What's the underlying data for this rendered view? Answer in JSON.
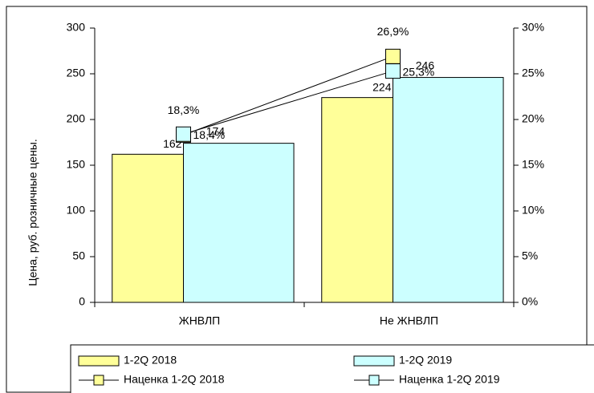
{
  "chart_data": {
    "type": "bar",
    "categories": [
      "ЖНВЛП",
      "Не ЖНВЛП"
    ],
    "y_label": "Цена, руб. розничные цены.",
    "series": [
      {
        "name": "1-2Q 2018",
        "color": "#ffff99",
        "values": [
          162,
          224
        ]
      },
      {
        "name": "1-2Q 2019",
        "color": "#ccffff",
        "values": [
          174,
          246
        ]
      },
      {
        "name": "Наценка 1-2Q 2018",
        "color": "#ffff99",
        "axis": "y2",
        "values": [
          18.3,
          26.9
        ],
        "value_labels": [
          "18,3%",
          "26,9%"
        ]
      },
      {
        "name": "Наценка 1-2Q 2019",
        "color": "#ccffff",
        "axis": "y2",
        "values": [
          18.4,
          25.3
        ],
        "value_labels": [
          "18,4%",
          "25,3%"
        ]
      }
    ],
    "ylim": [
      0,
      300
    ],
    "yticks": [
      0,
      50,
      100,
      150,
      200,
      250,
      300
    ],
    "y2lim": [
      0,
      30
    ],
    "y2ticks": [
      {
        "value": 0,
        "label": "0%"
      },
      {
        "value": 5,
        "label": "5%"
      },
      {
        "value": 10,
        "label": "10%"
      },
      {
        "value": 15,
        "label": "15%"
      },
      {
        "value": 20,
        "label": "20%"
      },
      {
        "value": 25,
        "label": "25%"
      },
      {
        "value": 30,
        "label": "30%"
      }
    ],
    "legend": "bottom",
    "grid": false
  }
}
